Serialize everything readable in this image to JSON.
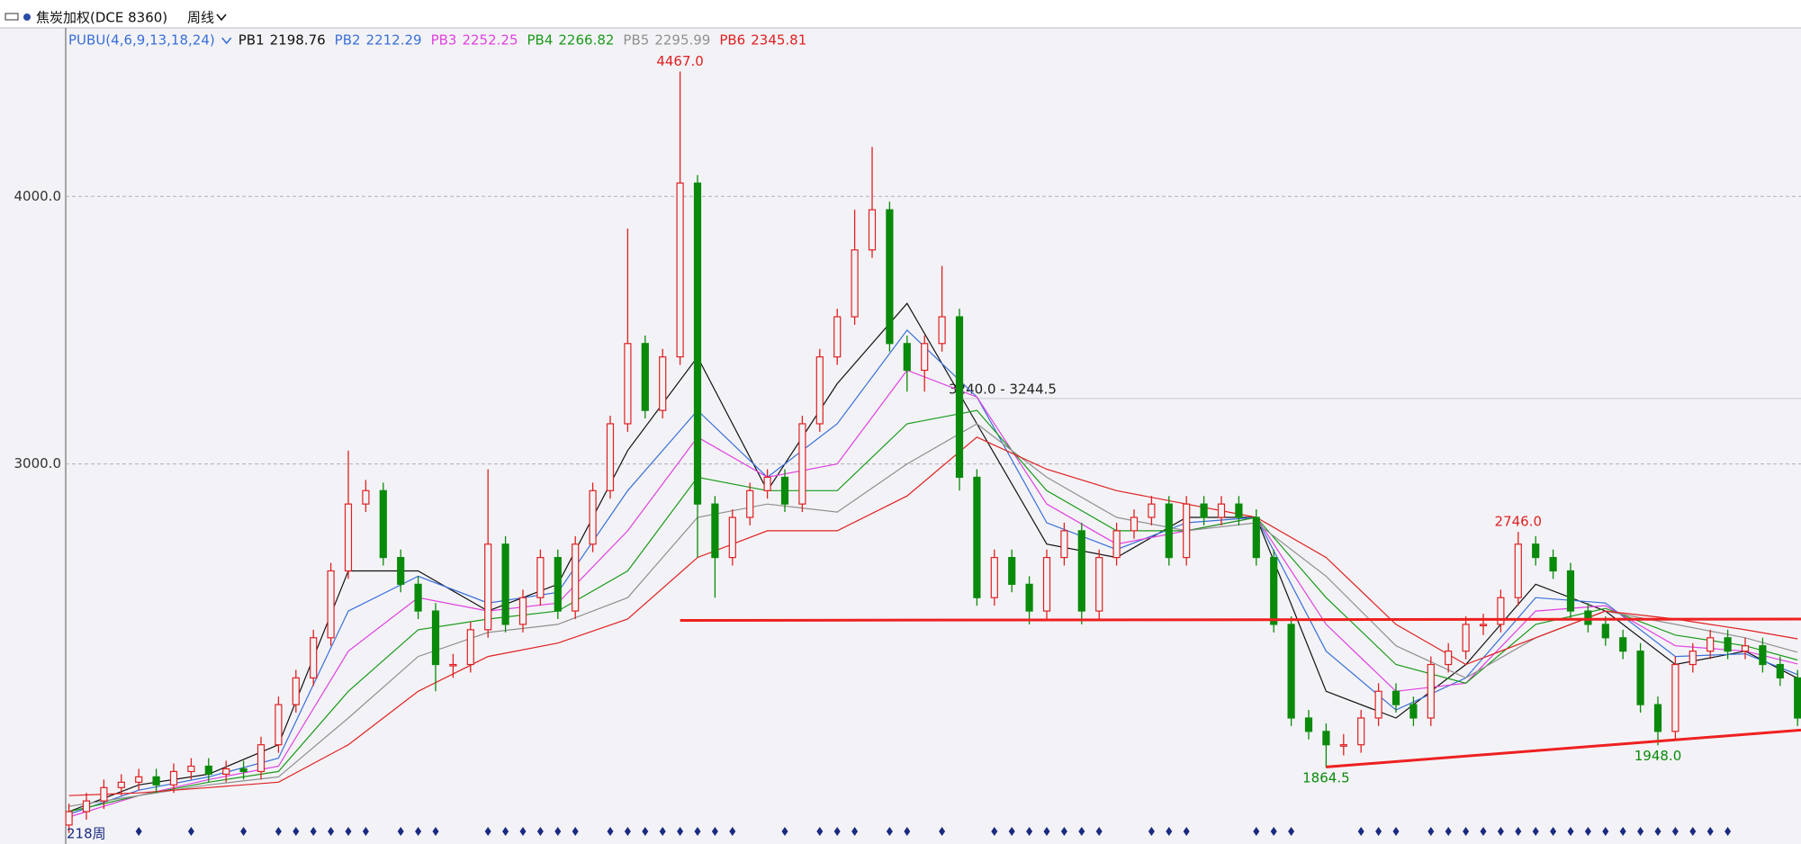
{
  "header": {
    "symbol": "焦炭加权(DCE 8360)",
    "period": "周线"
  },
  "chart_data": {
    "type": "candlestick",
    "indicator": "PUBU(4,6,9,13,18,24)",
    "period_label": "218周",
    "ylim": [
      1579,
      4630
    ],
    "yticks": [
      {
        "value": 3000,
        "label": "3000.0"
      },
      {
        "value": 4000,
        "label": "4000.0"
      }
    ],
    "grid": true,
    "up_color": "#e02020",
    "down_color": "#0a8a0a",
    "open": [
      1650,
      1700,
      1740,
      1790,
      1810,
      1830,
      1800,
      1850,
      1870,
      1840,
      1860,
      1850,
      1950,
      2100,
      2200,
      2350,
      2600,
      2850,
      2900,
      2650,
      2550,
      2450,
      2250,
      2250,
      2380,
      2700,
      2400,
      2500,
      2650,
      2450,
      2700,
      2900,
      3150,
      3450,
      3200,
      3400,
      4050,
      2850,
      2650,
      2800,
      2900,
      2950,
      2850,
      3150,
      3400,
      3550,
      3800,
      3950,
      3450,
      3350,
      3450,
      3550,
      2950,
      2500,
      2650,
      2550,
      2450,
      2650,
      2750,
      2450,
      2650,
      2750,
      2800,
      2850,
      2650,
      2850,
      2800,
      2850,
      2800,
      2650,
      2400,
      2050,
      2000,
      1950,
      1950,
      2050,
      2150,
      2100,
      2050,
      2250,
      2300,
      2400,
      2400,
      2500,
      2700,
      2650,
      2600,
      2450,
      2400,
      2350,
      2300,
      2100,
      2000,
      2250,
      2300,
      2350,
      2300,
      2320,
      2250,
      2200
    ],
    "high": [
      1730,
      1770,
      1820,
      1840,
      1860,
      1860,
      1880,
      1900,
      1900,
      1890,
      1890,
      1980,
      2130,
      2230,
      2380,
      2630,
      3050,
      2940,
      2930,
      2680,
      2580,
      2480,
      2290,
      2410,
      2980,
      2730,
      2530,
      2680,
      2680,
      2730,
      2930,
      3180,
      3880,
      3480,
      3430,
      4467,
      4080,
      2880,
      2830,
      2930,
      2980,
      2980,
      3180,
      3430,
      3580,
      3950,
      4185,
      3980,
      3480,
      3480,
      3740,
      3580,
      2980,
      2680,
      2680,
      2580,
      2680,
      2780,
      2780,
      2680,
      2780,
      2830,
      2880,
      2880,
      2880,
      2880,
      2880,
      2880,
      2830,
      2680,
      2430,
      2080,
      2030,
      1990,
      2080,
      2180,
      2180,
      2130,
      2280,
      2330,
      2430,
      2440,
      2530,
      2746,
      2730,
      2680,
      2630,
      2480,
      2430,
      2380,
      2330,
      2130,
      2280,
      2330,
      2380,
      2380,
      2350,
      2350,
      2280,
      2230
    ],
    "low": [
      1620,
      1670,
      1710,
      1760,
      1780,
      1770,
      1770,
      1820,
      1810,
      1810,
      1820,
      1820,
      1920,
      2070,
      2170,
      2320,
      2570,
      2820,
      2620,
      2520,
      2420,
      2150,
      2200,
      2220,
      2350,
      2370,
      2370,
      2470,
      2420,
      2420,
      2670,
      2870,
      3120,
      3170,
      3170,
      3370,
      2650,
      2500,
      2620,
      2770,
      2870,
      2820,
      2820,
      3120,
      3370,
      3520,
      3770,
      3420,
      3270,
      3270,
      3420,
      2900,
      2470,
      2470,
      2520,
      2400,
      2420,
      2620,
      2400,
      2420,
      2620,
      2720,
      2770,
      2620,
      2620,
      2770,
      2770,
      2770,
      2620,
      2370,
      2020,
      1970,
      1864.5,
      1910,
      1920,
      2020,
      2070,
      2020,
      2020,
      2220,
      2270,
      2360,
      2370,
      2470,
      2620,
      2570,
      2420,
      2370,
      2320,
      2270,
      2070,
      1948,
      1970,
      2220,
      2270,
      2270,
      2270,
      2220,
      2170,
      2020
    ],
    "close": [
      1700,
      1740,
      1790,
      1810,
      1830,
      1800,
      1850,
      1870,
      1840,
      1860,
      1850,
      1950,
      2100,
      2200,
      2350,
      2600,
      2850,
      2900,
      2650,
      2550,
      2450,
      2250,
      2250,
      2380,
      2700,
      2400,
      2500,
      2650,
      2450,
      2700,
      2900,
      3150,
      3450,
      3200,
      3400,
      4050,
      2850,
      2650,
      2800,
      2900,
      2950,
      2850,
      3150,
      3400,
      3550,
      3800,
      3950,
      3450,
      3350,
      3450,
      3550,
      2950,
      2500,
      2650,
      2550,
      2450,
      2650,
      2750,
      2450,
      2650,
      2750,
      2800,
      2850,
      2650,
      2850,
      2800,
      2850,
      2800,
      2650,
      2400,
      2050,
      2000,
      1950,
      1950,
      2050,
      2150,
      2100,
      2050,
      2250,
      2300,
      2400,
      2400,
      2500,
      2700,
      2650,
      2600,
      2450,
      2400,
      2350,
      2300,
      2100,
      2000,
      2250,
      2300,
      2350,
      2300,
      2320,
      2250,
      2200,
      2050
    ],
    "ma_x": [
      0,
      4,
      8,
      12,
      16,
      20,
      24,
      28,
      32,
      36,
      40,
      44,
      48,
      52,
      56,
      60,
      64,
      68,
      72,
      76,
      80,
      84,
      88,
      92,
      96,
      99
    ],
    "ma_lines": [
      {
        "name": "PB1",
        "color": "#111111",
        "values": [
          1700,
          1800,
          1840,
          1950,
          2600,
          2600,
          2450,
          2550,
          3050,
          3400,
          2900,
          3300,
          3600,
          3150,
          2700,
          2650,
          2800,
          2800,
          2150,
          2050,
          2250,
          2550,
          2450,
          2250,
          2300,
          2198.76
        ]
      },
      {
        "name": "PB2",
        "color": "#3a6fd8",
        "values": [
          1690,
          1780,
          1830,
          1900,
          2450,
          2580,
          2480,
          2520,
          2900,
          3200,
          2950,
          3150,
          3500,
          3250,
          2780,
          2680,
          2780,
          2800,
          2300,
          2080,
          2200,
          2500,
          2480,
          2280,
          2290,
          2212.29
        ]
      },
      {
        "name": "PB3",
        "color": "#e040e0",
        "values": [
          1680,
          1760,
          1820,
          1870,
          2300,
          2500,
          2450,
          2480,
          2750,
          3100,
          2950,
          3000,
          3350,
          3250,
          2850,
          2700,
          2750,
          2800,
          2400,
          2150,
          2180,
          2450,
          2470,
          2320,
          2300,
          2252.25
        ]
      },
      {
        "name": "PB4",
        "color": "#1a9a1a",
        "values": [
          1700,
          1760,
          1810,
          1850,
          2150,
          2380,
          2420,
          2450,
          2600,
          2950,
          2900,
          2900,
          3150,
          3200,
          2900,
          2750,
          2750,
          2800,
          2500,
          2250,
          2180,
          2400,
          2460,
          2360,
          2320,
          2266.82
        ]
      },
      {
        "name": "PB5",
        "color": "#909090",
        "values": [
          1720,
          1760,
          1800,
          1830,
          2050,
          2280,
          2370,
          2400,
          2500,
          2800,
          2850,
          2820,
          3000,
          3150,
          2950,
          2800,
          2750,
          2780,
          2580,
          2320,
          2200,
          2350,
          2450,
          2400,
          2350,
          2295.99
        ]
      },
      {
        "name": "PB6",
        "color": "#e02020",
        "values": [
          1760,
          1770,
          1790,
          1810,
          1950,
          2150,
          2280,
          2330,
          2420,
          2650,
          2750,
          2750,
          2880,
          3100,
          2980,
          2900,
          2850,
          2800,
          2650,
          2400,
          2250,
          2350,
          2450,
          2420,
          2380,
          2345.81
        ]
      }
    ],
    "annotations": [
      {
        "candle": 35,
        "value": 4467,
        "label": "4467.0",
        "color": "#e02020"
      },
      {
        "candle": 83,
        "value": 2746,
        "label": "2746.0",
        "color": "#e02020"
      },
      {
        "candle": 72,
        "value": 1864.5,
        "label": "1864.5",
        "color": "#0a8a0a"
      },
      {
        "candle": 91,
        "value": 1948,
        "label": "1948.0",
        "color": "#0a8a0a"
      }
    ],
    "price_line": {
      "candle": 51,
      "value": 3244.5,
      "label": "3240.0 - 3244.5"
    },
    "trendlines": [
      {
        "from_candle": 35,
        "from_value": 2415,
        "to_candle": 99,
        "to_value": 2420,
        "color": "#ee2020"
      },
      {
        "from_candle": 72,
        "from_value": 1867,
        "to_candle": 99,
        "to_value": 2004,
        "color": "#ee2020"
      }
    ],
    "signals": [
      4,
      7,
      10,
      12,
      13,
      14,
      15,
      16,
      17,
      19,
      20,
      21,
      24,
      25,
      26,
      27,
      28,
      29,
      31,
      32,
      33,
      34,
      35,
      36,
      37,
      38,
      41,
      43,
      44,
      45,
      47,
      48,
      50,
      53,
      54,
      55,
      56,
      57,
      58,
      59,
      62,
      63,
      64,
      68,
      69,
      70,
      74,
      75,
      76,
      78,
      79,
      80,
      81,
      82,
      83,
      84,
      85,
      86,
      87,
      88,
      89,
      90,
      91,
      92,
      93,
      94,
      95
    ]
  }
}
